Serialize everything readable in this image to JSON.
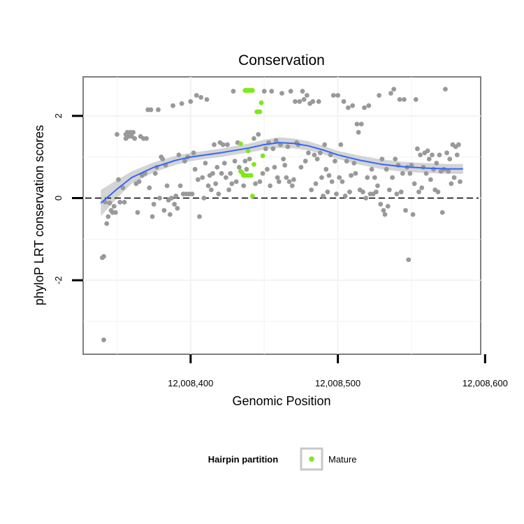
{
  "chart_data": {
    "type": "scatter",
    "title": "Conservation",
    "xlabel": "Genomic Position",
    "ylabel": "phyloP LRT conservation scores",
    "xlim": [
      12008327,
      12008597
    ],
    "ylim": [
      -3.8,
      2.95
    ],
    "x_ticks": [
      {
        "value": 12008400,
        "label": "12,008,400"
      },
      {
        "value": 12008500,
        "label": "12,008,500"
      },
      {
        "value": 12008600,
        "label": "12,008,600"
      }
    ],
    "y_ticks": [
      {
        "value": -2,
        "label": "-2"
      },
      {
        "value": 0,
        "label": "0"
      },
      {
        "value": 2,
        "label": "2"
      }
    ],
    "grid": true,
    "reference_line": {
      "y": 0,
      "style": "dashed"
    },
    "colors": {
      "background_points": "#999999",
      "mature_points": "#7FE817",
      "smooth_line": "#3366FF",
      "confidence_band": "#CCCCCC",
      "panel_border": "#7F7F7F",
      "grid": "#F2F2F2"
    },
    "legend": {
      "title": "Hairpin partition",
      "placement": "bottom",
      "entries": [
        {
          "name": "Mature",
          "color": "#7FE817"
        }
      ]
    },
    "series": [
      {
        "name": "Mature",
        "color": "#7FE817",
        "points": [
          [
            12008437,
            2.62
          ],
          [
            12008438,
            2.62
          ],
          [
            12008439,
            2.62
          ],
          [
            12008440,
            2.62
          ],
          [
            12008441,
            2.62
          ],
          [
            12008442,
            2.62
          ],
          [
            12008445,
            2.1
          ],
          [
            12008446,
            2.1
          ],
          [
            12008447,
            2.1
          ],
          [
            12008448,
            2.32
          ],
          [
            12008434,
            1.32
          ],
          [
            12008439,
            1.15
          ],
          [
            12008449,
            1.03
          ],
          [
            12008443,
            0.82
          ],
          [
            12008434,
            0.65
          ],
          [
            12008435,
            0.62
          ],
          [
            12008436,
            0.55
          ],
          [
            12008437,
            0.55
          ],
          [
            12008439,
            0.55
          ],
          [
            12008441,
            0.55
          ],
          [
            12008442,
            0.05
          ]
        ]
      },
      {
        "points": [
          [
            12008340,
            -1.45
          ],
          [
            12008341,
            -1.42
          ],
          [
            12008341,
            -3.45
          ],
          [
            12008342,
            -0.1
          ],
          [
            12008343,
            -0.62
          ],
          [
            12008344,
            -0.45
          ],
          [
            12008345,
            -0.12
          ],
          [
            12008346,
            -0.3
          ],
          [
            12008347,
            -0.35
          ],
          [
            12008348,
            -0.2
          ],
          [
            12008349,
            -0.35
          ],
          [
            12008350,
            1.55
          ],
          [
            12008351,
            0.45
          ],
          [
            12008352,
            -0.1
          ],
          [
            12008354,
            0.25
          ],
          [
            12008355,
            -0.1
          ],
          [
            12008356,
            1.55
          ],
          [
            12008356,
            1.45
          ],
          [
            12008357,
            1.6
          ],
          [
            12008358,
            1.5
          ],
          [
            12008359,
            1.6
          ],
          [
            12008360,
            1.5
          ],
          [
            12008361,
            1.6
          ],
          [
            12008362,
            1.45
          ],
          [
            12008363,
            0.35
          ],
          [
            12008364,
            -0.35
          ],
          [
            12008365,
            0.4
          ],
          [
            12008366,
            1.5
          ],
          [
            12008367,
            0.55
          ],
          [
            12008368,
            1.45
          ],
          [
            12008369,
            0.6
          ],
          [
            12008370,
            1.45
          ],
          [
            12008371,
            2.15
          ],
          [
            12008372,
            0.25
          ],
          [
            12008373,
            2.15
          ],
          [
            12008374,
            -0.45
          ],
          [
            12008375,
            -0.15
          ],
          [
            12008376,
            0.6
          ],
          [
            12008377,
            0.75
          ],
          [
            12008378,
            2.15
          ],
          [
            12008379,
            0.0
          ],
          [
            12008380,
            1.0
          ],
          [
            12008381,
            0.95
          ],
          [
            12008382,
            -0.3
          ],
          [
            12008383,
            0.8
          ],
          [
            12008384,
            0.3
          ],
          [
            12008385,
            -0.05
          ],
          [
            12008386,
            -0.4
          ],
          [
            12008387,
            0.0
          ],
          [
            12008388,
            2.25
          ],
          [
            12008389,
            -0.15
          ],
          [
            12008390,
            0.05
          ],
          [
            12008391,
            -0.25
          ],
          [
            12008392,
            1.05
          ],
          [
            12008393,
            0.3
          ],
          [
            12008394,
            2.3
          ],
          [
            12008395,
            0.1
          ],
          [
            12008396,
            0.9
          ],
          [
            12008397,
            0.1
          ],
          [
            12008398,
            1.0
          ],
          [
            12008399,
            0.1
          ],
          [
            12008400,
            2.35
          ],
          [
            12008401,
            0.1
          ],
          [
            12008402,
            1.1
          ],
          [
            12008403,
            0.7
          ],
          [
            12008404,
            2.5
          ],
          [
            12008405,
            0.45
          ],
          [
            12008406,
            -0.45
          ],
          [
            12008407,
            2.45
          ],
          [
            12008408,
            0.5
          ],
          [
            12008409,
            0.0
          ],
          [
            12008410,
            0.85
          ],
          [
            12008411,
            2.4
          ],
          [
            12008412,
            0.3
          ],
          [
            12008413,
            0.55
          ],
          [
            12008414,
            0.2
          ],
          [
            12008415,
            0.6
          ],
          [
            12008416,
            1.3
          ],
          [
            12008417,
            0.35
          ],
          [
            12008418,
            0.75
          ],
          [
            12008419,
            0.1
          ],
          [
            12008420,
            1.35
          ],
          [
            12008421,
            0.6
          ],
          [
            12008422,
            1.3
          ],
          [
            12008423,
            0.85
          ],
          [
            12008424,
            0.5
          ],
          [
            12008425,
            1.3
          ],
          [
            12008426,
            0.2
          ],
          [
            12008427,
            0.6
          ],
          [
            12008428,
            0.35
          ],
          [
            12008429,
            2.6
          ],
          [
            12008430,
            0.9
          ],
          [
            12008431,
            0.4
          ],
          [
            12008432,
            1.35
          ],
          [
            12008433,
            0.75
          ],
          [
            12008436,
            0.3
          ],
          [
            12008437,
            0.9
          ],
          [
            12008438,
            0.7
          ],
          [
            12008440,
            0.95
          ],
          [
            12008443,
            1.45
          ],
          [
            12008444,
            0.35
          ],
          [
            12008446,
            1.55
          ],
          [
            12008447,
            0.4
          ],
          [
            12008449,
            0.6
          ],
          [
            12008450,
            2.6
          ],
          [
            12008451,
            1.2
          ],
          [
            12008452,
            0.7
          ],
          [
            12008453,
            1.35
          ],
          [
            12008454,
            0.3
          ],
          [
            12008455,
            2.6
          ],
          [
            12008456,
            1.2
          ],
          [
            12008457,
            0.75
          ],
          [
            12008458,
            1.4
          ],
          [
            12008459,
            0.5
          ],
          [
            12008460,
            0.4
          ],
          [
            12008461,
            1.3
          ],
          [
            12008462,
            2.55
          ],
          [
            12008463,
            0.95
          ],
          [
            12008464,
            0.8
          ],
          [
            12008465,
            0.5
          ],
          [
            12008466,
            1.25
          ],
          [
            12008467,
            0.4
          ],
          [
            12008468,
            2.6
          ],
          [
            12008469,
            0.3
          ],
          [
            12008470,
            0.45
          ],
          [
            12008471,
            2.35
          ],
          [
            12008472,
            1.35
          ],
          [
            12008473,
            1.3
          ],
          [
            12008474,
            2.35
          ],
          [
            12008475,
            0.75
          ],
          [
            12008476,
            2.6
          ],
          [
            12008477,
            2.4
          ],
          [
            12008478,
            0.9
          ],
          [
            12008479,
            2.5
          ],
          [
            12008480,
            1.1
          ],
          [
            12008481,
            2.3
          ],
          [
            12008482,
            0.2
          ],
          [
            12008483,
            2.35
          ],
          [
            12008484,
            1.05
          ],
          [
            12008485,
            0.35
          ],
          [
            12008486,
            0.95
          ],
          [
            12008487,
            2.35
          ],
          [
            12008488,
            1.1
          ],
          [
            12008489,
            0.5
          ],
          [
            12008490,
            0.05
          ],
          [
            12008491,
            1.3
          ],
          [
            12008492,
            0.7
          ],
          [
            12008493,
            0.15
          ],
          [
            12008494,
            0.55
          ],
          [
            12008495,
            1.05
          ],
          [
            12008496,
            0.4
          ],
          [
            12008497,
            2.5
          ],
          [
            12008498,
            0.9
          ],
          [
            12008499,
            0.1
          ],
          [
            12008500,
            2.5
          ],
          [
            12008501,
            0.5
          ],
          [
            12008502,
            1.3
          ],
          [
            12008503,
            0.4
          ],
          [
            12008504,
            2.35
          ],
          [
            12008505,
            0.05
          ],
          [
            12008506,
            0.9
          ],
          [
            12008507,
            2.2
          ],
          [
            12008508,
            0.15
          ],
          [
            12008509,
            0.55
          ],
          [
            12008510,
            2.25
          ],
          [
            12008511,
            0.85
          ],
          [
            12008512,
            0.6
          ],
          [
            12008513,
            1.8
          ],
          [
            12008514,
            1.6
          ],
          [
            12008515,
            0.2
          ],
          [
            12008516,
            1.8
          ],
          [
            12008517,
            0.15
          ],
          [
            12008518,
            2.2
          ],
          [
            12008519,
            0.0
          ],
          [
            12008520,
            0.5
          ],
          [
            12008521,
            2.25
          ],
          [
            12008522,
            0.1
          ],
          [
            12008523,
            0.7
          ],
          [
            12008524,
            0.1
          ],
          [
            12008525,
            0.5
          ],
          [
            12008526,
            0.15
          ],
          [
            12008527,
            0.3
          ],
          [
            12008528,
            2.5
          ],
          [
            12008529,
            -0.15
          ],
          [
            12008530,
            0.95
          ],
          [
            12008531,
            -0.3
          ],
          [
            12008532,
            -0.4
          ],
          [
            12008533,
            0.7
          ],
          [
            12008534,
            -0.2
          ],
          [
            12008535,
            0.2
          ],
          [
            12008536,
            2.55
          ],
          [
            12008537,
            0.5
          ],
          [
            12008538,
            2.65
          ],
          [
            12008539,
            0.95
          ],
          [
            12008540,
            0.1
          ],
          [
            12008541,
            0.8
          ],
          [
            12008542,
            2.4
          ],
          [
            12008543,
            0.15
          ],
          [
            12008544,
            0.6
          ],
          [
            12008545,
            2.4
          ],
          [
            12008546,
            -0.3
          ],
          [
            12008547,
            0.75
          ],
          [
            12008548,
            -1.5
          ],
          [
            12008549,
            0.6
          ],
          [
            12008550,
            0.8
          ],
          [
            12008551,
            -0.4
          ],
          [
            12008552,
            0.35
          ],
          [
            12008553,
            2.4
          ],
          [
            12008554,
            1.2
          ],
          [
            12008555,
            0.15
          ],
          [
            12008556,
            1.05
          ],
          [
            12008557,
            0.25
          ],
          [
            12008558,
            0.75
          ],
          [
            12008559,
            1.1
          ],
          [
            12008560,
            0.6
          ],
          [
            12008561,
            1.15
          ],
          [
            12008562,
            0.95
          ],
          [
            12008563,
            0.45
          ],
          [
            12008564,
            1.05
          ],
          [
            12008565,
            0.7
          ],
          [
            12008566,
            0.2
          ],
          [
            12008567,
            0.85
          ],
          [
            12008568,
            0.15
          ],
          [
            12008569,
            1.05
          ],
          [
            12008570,
            0.65
          ],
          [
            12008571,
            -0.35
          ],
          [
            12008572,
            0.7
          ],
          [
            12008573,
            2.65
          ],
          [
            12008574,
            1.1
          ],
          [
            12008575,
            0.65
          ],
          [
            12008576,
            0.95
          ],
          [
            12008577,
            0.35
          ],
          [
            12008578,
            1.3
          ],
          [
            12008579,
            0.5
          ],
          [
            12008580,
            1.25
          ],
          [
            12008581,
            1.05
          ],
          [
            12008582,
            1.3
          ],
          [
            12008583,
            0.4
          ]
        ]
      }
    ],
    "smooth": [
      [
        12008339,
        -0.12
      ],
      [
        12008350,
        0.22
      ],
      [
        12008360,
        0.5
      ],
      [
        12008375,
        0.75
      ],
      [
        12008390,
        0.92
      ],
      [
        12008400,
        1.0
      ],
      [
        12008420,
        1.1
      ],
      [
        12008440,
        1.22
      ],
      [
        12008450,
        1.3
      ],
      [
        12008460,
        1.35
      ],
      [
        12008470,
        1.33
      ],
      [
        12008480,
        1.27
      ],
      [
        12008490,
        1.17
      ],
      [
        12008500,
        1.05
      ],
      [
        12008515,
        0.92
      ],
      [
        12008530,
        0.82
      ],
      [
        12008545,
        0.76
      ],
      [
        12008560,
        0.73
      ],
      [
        12008575,
        0.71
      ],
      [
        12008585,
        0.71
      ]
    ],
    "band_width": [
      0.32,
      0.22,
      0.15,
      0.12,
      0.11,
      0.1,
      0.1,
      0.11,
      0.12,
      0.13,
      0.12,
      0.11,
      0.1,
      0.1,
      0.11,
      0.12,
      0.12,
      0.12,
      0.12,
      0.12
    ]
  }
}
